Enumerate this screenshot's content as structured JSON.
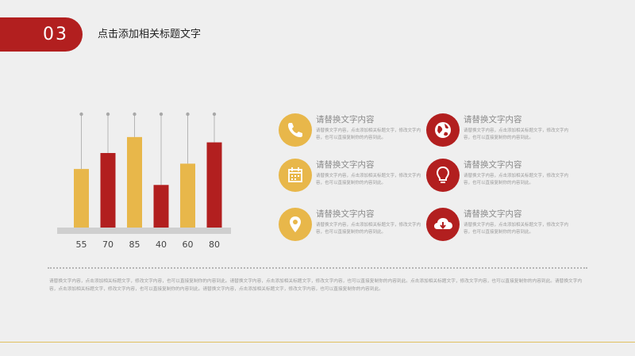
{
  "header": {
    "number": "03",
    "title": "点击添加相关标题文字"
  },
  "colors": {
    "accent_red": "#b21f1f",
    "accent_yellow": "#e8b74a",
    "baseline_gray": "#cfcfcf"
  },
  "chart_data": {
    "type": "bar",
    "categories": [
      "55",
      "70",
      "85",
      "40",
      "60",
      "80"
    ],
    "values": [
      55,
      70,
      85,
      40,
      60,
      80
    ],
    "colors": [
      "#e8b74a",
      "#b21f1f",
      "#e8b74a",
      "#b21f1f",
      "#e8b74a",
      "#b21f1f"
    ],
    "xlabel": "",
    "ylabel": "",
    "grid": false
  },
  "features": [
    {
      "title": "请替换文字内容",
      "desc": "请替换文字内容，点击添加相关标题文字，修改文字内容，也可以直接复制你的内容到此。",
      "icon": "phone-icon",
      "color": "#e8b74a"
    },
    {
      "title": "请替换文字内容",
      "desc": "请替换文字内容，点击添加相关标题文字，修改文字内容，也可以直接复制你的内容到此。",
      "icon": "globe-icon",
      "color": "#b21f1f"
    },
    {
      "title": "请替换文字内容",
      "desc": "请替换文字内容，点击添加相关标题文字，修改文字内容，也可以直接复制你的内容到此。",
      "icon": "calendar-icon",
      "color": "#e8b74a"
    },
    {
      "title": "请替换文字内容",
      "desc": "请替换文字内容，点击添加相关标题文字，修改文字内容，也可以直接复制你的内容到此。",
      "icon": "lightbulb-icon",
      "color": "#b21f1f"
    },
    {
      "title": "请替换文字内容",
      "desc": "请替换文字内容，点击添加相关标题文字，修改文字内容，也可以直接复制你的内容到此。",
      "icon": "location-pin-icon",
      "color": "#e8b74a"
    },
    {
      "title": "请替换文字内容",
      "desc": "请替换文字内容，点击添加相关标题文字，修改文字内容，也可以直接复制你的内容到此。",
      "icon": "cloud-download-icon",
      "color": "#b21f1f"
    }
  ],
  "body_text": "请替换文字内容，点击添加相关标题文字，修改文字内容，也可以直接复制你的内容到此。请替换文字内容，点击添加相关标题文字，修改文字内容，也可以直接复制你的内容到此。点击添加相关标题文字，修改文字内容，也可以直接复制你的内容到此。请替换文字内容，点击添加相关标题文字，修改文字内容，也可以直接复制你的内容到此。请替换文字内容，点击添加相关标题文字，修改文字内容，也可以直接复制你的内容到此。"
}
